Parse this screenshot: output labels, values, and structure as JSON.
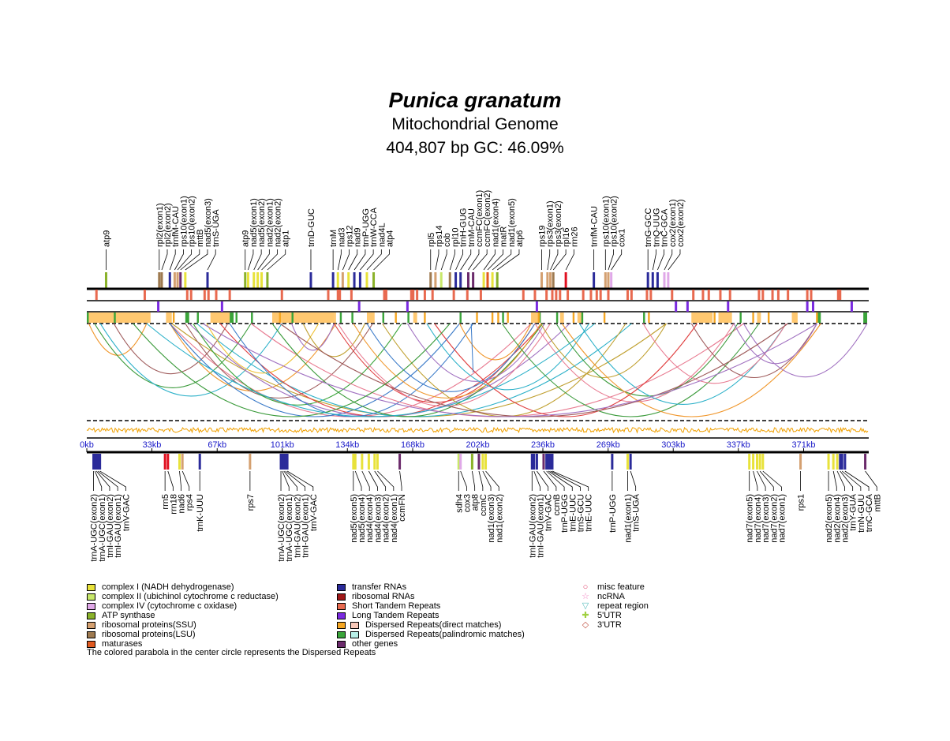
{
  "title": {
    "species": "Punica granatum",
    "subtitle": "Mitochondrial Genome",
    "stats": "404,807 bp  GC: 46.09%"
  },
  "genome_length": 404807,
  "axis_ticks": [
    "0kb",
    "33kb",
    "67kb",
    "101kb",
    "134kb",
    "168kb",
    "202kb",
    "236kb",
    "269kb",
    "303kb",
    "337kb",
    "371kb"
  ],
  "colors": {
    "complex_I": "#e8e23a",
    "complex_II": "#c8e86a",
    "complex_IV": "#e0a8e8",
    "atp": "#8ab22a",
    "rps": "#d4a070",
    "rpl": "#9e7a50",
    "mat": "#e05a20",
    "trna": "#2b2b9a",
    "rrna": "#e01020",
    "ssr": "#e86a50",
    "ltr": "#7a2ae0",
    "direct": "#f5a623",
    "palin": "#3aa43a",
    "other": "#6b2a6b",
    "gc": "#f0a000"
  },
  "top_genes": [
    {
      "name": "atp9",
      "kb": 10,
      "cls": "atp"
    },
    {
      "name": "rpl2(exon1)",
      "kb": 37.5,
      "cls": "rpl"
    },
    {
      "name": "rpl2(exon2)",
      "kb": 38.8,
      "cls": "rpl"
    },
    {
      "name": "trnfM-CAU",
      "kb": 43.0,
      "cls": "trna"
    },
    {
      "name": "rps10(exon1)",
      "kb": 45.5,
      "cls": "rps"
    },
    {
      "name": "rps10(exon2)",
      "kb": 47.0,
      "cls": "rps"
    },
    {
      "name": "mttB",
      "kb": 48.5,
      "cls": "other"
    },
    {
      "name": "nad5(exon3)",
      "kb": 51.0,
      "cls": "complex_I"
    },
    {
      "name": "trnS-UGA",
      "kb": 62.5,
      "cls": "trna"
    },
    {
      "name": "atp9",
      "kb": 82.0,
      "cls": "atp"
    },
    {
      "name": "nad5(exon1)",
      "kb": 83.5,
      "cls": "complex_I"
    },
    {
      "name": "nad5(exon2)",
      "kb": 86.5,
      "cls": "complex_I"
    },
    {
      "name": "nad2(exon1)",
      "kb": 88.5,
      "cls": "complex_I"
    },
    {
      "name": "nad2(exon2)",
      "kb": 90.5,
      "cls": "complex_I"
    },
    {
      "name": "atp1",
      "kb": 93.5,
      "cls": "atp"
    },
    {
      "name": "trnD-GUC",
      "kb": 116.0,
      "cls": "trna"
    },
    {
      "name": "trnM",
      "kb": 127.5,
      "cls": "trna"
    },
    {
      "name": "nad3",
      "kb": 130.0,
      "cls": "complex_I"
    },
    {
      "name": "rps12",
      "kb": 132.5,
      "cls": "rps"
    },
    {
      "name": "nad9",
      "kb": 135.5,
      "cls": "complex_I"
    },
    {
      "name": "trnP-UGG",
      "kb": 138.5,
      "cls": "trna"
    },
    {
      "name": "trnW-CCA",
      "kb": 141.5,
      "cls": "trna"
    },
    {
      "name": "nad4L",
      "kb": 145.0,
      "cls": "complex_I"
    },
    {
      "name": "atp4",
      "kb": 148.5,
      "cls": "atp"
    },
    {
      "name": "rpl5",
      "kb": 178.0,
      "cls": "rpl"
    },
    {
      "name": "rps14",
      "kb": 180.5,
      "cls": "rps"
    },
    {
      "name": "cob",
      "kb": 183.5,
      "cls": "complex_II"
    },
    {
      "name": "rpl10",
      "kb": 188.0,
      "cls": "rpl"
    },
    {
      "name": "trnH-GUG",
      "kb": 191.0,
      "cls": "trna"
    },
    {
      "name": "trnM-CAU",
      "kb": 193.5,
      "cls": "trna"
    },
    {
      "name": "ccmFC(exon1)",
      "kb": 197.5,
      "cls": "other"
    },
    {
      "name": "ccmFC(exon2)",
      "kb": 200.0,
      "cls": "other"
    },
    {
      "name": "nad1(exon4)",
      "kb": 205.5,
      "cls": "complex_I"
    },
    {
      "name": "matR",
      "kb": 207.5,
      "cls": "mat"
    },
    {
      "name": "nad1(exon5)",
      "kb": 210.0,
      "cls": "complex_I"
    },
    {
      "name": "atp6",
      "kb": 212.5,
      "cls": "atp"
    },
    {
      "name": "rps19",
      "kb": 235.5,
      "cls": "rps"
    },
    {
      "name": "rps3(exon1)",
      "kb": 238.5,
      "cls": "rps"
    },
    {
      "name": "rps3(exon2)",
      "kb": 240.0,
      "cls": "rps"
    },
    {
      "name": "rpl16",
      "kb": 241.5,
      "cls": "rpl"
    },
    {
      "name": "rrn26",
      "kb": 248.0,
      "cls": "rrna"
    },
    {
      "name": "trnfM-CAU",
      "kb": 262.5,
      "cls": "trna"
    },
    {
      "name": "rps10(exon1)",
      "kb": 268.5,
      "cls": "rps"
    },
    {
      "name": "rps10(exon2)",
      "kb": 270.0,
      "cls": "rps"
    },
    {
      "name": "cox1",
      "kb": 271.5,
      "cls": "complex_IV"
    },
    {
      "name": "trnG-GCC",
      "kb": 290.5,
      "cls": "trna"
    },
    {
      "name": "trnQ-UUG",
      "kb": 293.0,
      "cls": "trna"
    },
    {
      "name": "trnC-GCA",
      "kb": 295.5,
      "cls": "trna"
    },
    {
      "name": "cox2(exon1)",
      "kb": 299.0,
      "cls": "complex_IV"
    },
    {
      "name": "cox2(exon2)",
      "kb": 301.0,
      "cls": "complex_IV"
    }
  ],
  "bottom_genes": [
    {
      "name": "trnA-UGC(exon2)",
      "kb": 3.5,
      "cls": "trna"
    },
    {
      "name": "trnA-UGC(exon1)",
      "kb": 4.2,
      "cls": "trna"
    },
    {
      "name": "trnI-GAU(exon2)",
      "kb": 5.0,
      "cls": "trna"
    },
    {
      "name": "trnI-GAU(exon1)",
      "kb": 5.8,
      "cls": "trna"
    },
    {
      "name": "trnV-GAC",
      "kb": 6.8,
      "cls": "trna"
    },
    {
      "name": "rrn5",
      "kb": 40.5,
      "cls": "rrna"
    },
    {
      "name": "rrn18",
      "kb": 42.0,
      "cls": "rrna"
    },
    {
      "name": "nad6",
      "kb": 48.0,
      "cls": "complex_I"
    },
    {
      "name": "rps4",
      "kb": 49.5,
      "cls": "rps"
    },
    {
      "name": "trnK-UUU",
      "kb": 58.5,
      "cls": "trna"
    },
    {
      "name": "rps7",
      "kb": 84.5,
      "cls": "rps"
    },
    {
      "name": "trnA-UGC(exon2)",
      "kb": 100.5,
      "cls": "trna"
    },
    {
      "name": "trnA-UGC(exon1)",
      "kb": 101.2,
      "cls": "trna"
    },
    {
      "name": "trnI-GAU(exon2)",
      "kb": 102.0,
      "cls": "trna"
    },
    {
      "name": "trnI-GAU(exon1)",
      "kb": 102.8,
      "cls": "trna"
    },
    {
      "name": "trnV-GAC",
      "kb": 103.8,
      "cls": "trna"
    },
    {
      "name": "nad5(exon5)",
      "kb": 138.0,
      "cls": "complex_I"
    },
    {
      "name": "nad5(exon4)",
      "kb": 139.0,
      "cls": "complex_I"
    },
    {
      "name": "nad4(exon4)",
      "kb": 142.5,
      "cls": "complex_I"
    },
    {
      "name": "nad4(exon3)",
      "kb": 146.0,
      "cls": "complex_I"
    },
    {
      "name": "nad4(exon2)",
      "kb": 149.0,
      "cls": "complex_I"
    },
    {
      "name": "nad4(exon1)",
      "kb": 150.5,
      "cls": "complex_I"
    },
    {
      "name": "ccmFN",
      "kb": 162.0,
      "cls": "other"
    },
    {
      "name": "sdh4",
      "kb": 192.5,
      "cls": "complex_II"
    },
    {
      "name": "cox3",
      "kb": 193.5,
      "cls": "complex_IV"
    },
    {
      "name": "atp8",
      "kb": 199.5,
      "cls": "atp"
    },
    {
      "name": "ccmC",
      "kb": 203.0,
      "cls": "other"
    },
    {
      "name": "nad1(exon3)",
      "kb": 205.0,
      "cls": "complex_I"
    },
    {
      "name": "nad1(exon2)",
      "kb": 206.5,
      "cls": "complex_I"
    },
    {
      "name": "trnI-GAU(exon2)",
      "kb": 230.5,
      "cls": "trna"
    },
    {
      "name": "trnI-GAU(exon1)",
      "kb": 231.5,
      "cls": "trna"
    },
    {
      "name": "trnV-GAC",
      "kb": 233.0,
      "cls": "trna"
    },
    {
      "name": "ccmB",
      "kb": 236.5,
      "cls": "other"
    },
    {
      "name": "trnP-UGG",
      "kb": 238.0,
      "cls": "trna"
    },
    {
      "name": "trnE-UUC",
      "kb": 239.0,
      "cls": "trna"
    },
    {
      "name": "trnS-GCU",
      "kb": 240.0,
      "cls": "trna"
    },
    {
      "name": "trnE-UUC",
      "kb": 241.0,
      "cls": "trna"
    },
    {
      "name": "trnP-UGG",
      "kb": 272.0,
      "cls": "trna"
    },
    {
      "name": "nad1(exon1)",
      "kb": 280.0,
      "cls": "complex_I"
    },
    {
      "name": "trnS-UGA",
      "kb": 281.5,
      "cls": "trna"
    },
    {
      "name": "nad7(exon5)",
      "kb": 343.0,
      "cls": "complex_I"
    },
    {
      "name": "nad7(exon4)",
      "kb": 345.0,
      "cls": "complex_I"
    },
    {
      "name": "nad7(exon3)",
      "kb": 347.0,
      "cls": "complex_I"
    },
    {
      "name": "nad7(exon2)",
      "kb": 348.5,
      "cls": "complex_I"
    },
    {
      "name": "nad7(exon1)",
      "kb": 350.0,
      "cls": "complex_I"
    },
    {
      "name": "rps1",
      "kb": 369.5,
      "cls": "rps"
    },
    {
      "name": "nad2(exon5)",
      "kb": 384.0,
      "cls": "complex_I"
    },
    {
      "name": "nad2(exon4)",
      "kb": 386.5,
      "cls": "complex_I"
    },
    {
      "name": "nad2(exon3)",
      "kb": 388.5,
      "cls": "complex_I"
    },
    {
      "name": "trnY-GUA",
      "kb": 390.0,
      "cls": "trna"
    },
    {
      "name": "trnN-GUU",
      "kb": 391.0,
      "cls": "trna"
    },
    {
      "name": "trnC-GCA",
      "kb": 392.5,
      "cls": "trna"
    },
    {
      "name": "mttB",
      "kb": 403.0,
      "cls": "other"
    }
  ],
  "ssr_kb": [
    5,
    30,
    52,
    54,
    61,
    63,
    67,
    74,
    101,
    125,
    130,
    131,
    137,
    154,
    155,
    168,
    169,
    171,
    175,
    179,
    190,
    197,
    204,
    226,
    232,
    238,
    241,
    243,
    245,
    249,
    257,
    261,
    264,
    266,
    270,
    280,
    282,
    290,
    292,
    303,
    314,
    319,
    322,
    328,
    333,
    348,
    350,
    355,
    358,
    363,
    373,
    375,
    389,
    390
  ],
  "ltr_kb": [
    37,
    70,
    141,
    166,
    233,
    305,
    311,
    332,
    373,
    376,
    396
  ],
  "direct_blocks_kb": [
    [
      0,
      33
    ],
    [
      41,
      44
    ],
    [
      64,
      75
    ],
    [
      96,
      128
    ],
    [
      128,
      129
    ],
    [
      145,
      149
    ],
    [
      169,
      171
    ],
    [
      230,
      235
    ],
    [
      245,
      247
    ],
    [
      254,
      256
    ],
    [
      313,
      324
    ],
    [
      327,
      334
    ],
    [
      347,
      349
    ],
    [
      365,
      368
    ]
  ],
  "palin_blocks_kb": [
    [
      0,
      1
    ],
    [
      14,
      15
    ],
    [
      51,
      53
    ],
    [
      57,
      58
    ],
    [
      74,
      76
    ],
    [
      77,
      78
    ],
    [
      85,
      86
    ],
    [
      106,
      107
    ],
    [
      131,
      132
    ],
    [
      137,
      138
    ],
    [
      153,
      154
    ],
    [
      166,
      167
    ],
    [
      193,
      194
    ],
    [
      215,
      216
    ],
    [
      234,
      235
    ],
    [
      243,
      244
    ],
    [
      256,
      257
    ],
    [
      288,
      289
    ],
    [
      338,
      339
    ],
    [
      378,
      380
    ],
    [
      402,
      404
    ]
  ],
  "dispersed_repeats": [
    {
      "a": 1,
      "b": 31,
      "color": "#f0962a"
    },
    {
      "a": 4,
      "b": 85,
      "color": "#3a9a3a"
    },
    {
      "a": 7,
      "b": 101,
      "color": "#2ab0c8"
    },
    {
      "a": 14,
      "b": 73,
      "color": "#9e5a5a"
    },
    {
      "a": 43,
      "b": 129,
      "color": "#f0962a"
    },
    {
      "a": 43,
      "b": 230,
      "color": "#e87a90"
    },
    {
      "a": 43,
      "b": 193,
      "color": "#3a7ac8"
    },
    {
      "a": 44,
      "b": 300,
      "color": "#c0a030"
    },
    {
      "a": 51,
      "b": 148,
      "color": "#9e5a5a"
    },
    {
      "a": 53,
      "b": 250,
      "color": "#a070c0"
    },
    {
      "a": 55,
      "b": 163,
      "color": "#3aa43a"
    },
    {
      "a": 57,
      "b": 282,
      "color": "#2ab0c8"
    },
    {
      "a": 62,
      "b": 120,
      "color": "#f0c030"
    },
    {
      "a": 69,
      "b": 236,
      "color": "#e04040"
    },
    {
      "a": 74,
      "b": 200,
      "color": "#3a7ac8"
    },
    {
      "a": 85,
      "b": 340,
      "color": "#e87a90"
    },
    {
      "a": 96,
      "b": 236,
      "color": "#3a9a3a"
    },
    {
      "a": 106,
      "b": 128,
      "color": "#a070c0"
    },
    {
      "a": 112,
      "b": 144,
      "color": "#c0a030"
    },
    {
      "a": 128,
      "b": 232,
      "color": "#e04040"
    },
    {
      "a": 130,
      "b": 240,
      "color": "#e87a90"
    },
    {
      "a": 138,
      "b": 235,
      "color": "#f0962a"
    },
    {
      "a": 145,
      "b": 232,
      "color": "#3a7ac8"
    },
    {
      "a": 153,
      "b": 279,
      "color": "#c0a030"
    },
    {
      "a": 166,
      "b": 237,
      "color": "#a070c0"
    },
    {
      "a": 176,
      "b": 260,
      "color": "#2ab0c8"
    },
    {
      "a": 193,
      "b": 230,
      "color": "#f0962a"
    },
    {
      "a": 215,
      "b": 348,
      "color": "#3a9a3a"
    },
    {
      "a": 232,
      "b": 335,
      "color": "#e87a90"
    },
    {
      "a": 235,
      "b": 300,
      "color": "#c0a030"
    },
    {
      "a": 243,
      "b": 337,
      "color": "#3a9a3a"
    },
    {
      "a": 246,
      "b": 380,
      "color": "#f0962a"
    },
    {
      "a": 255,
      "b": 362,
      "color": "#2ab0c8"
    },
    {
      "a": 288,
      "b": 362,
      "color": "#e87a90"
    },
    {
      "a": 313,
      "b": 378,
      "color": "#9e5a5a"
    },
    {
      "a": 335,
      "b": 378,
      "color": "#a070c0"
    },
    {
      "a": 340,
      "b": 404,
      "color": "#a070c0"
    },
    {
      "a": 180,
      "b": 316,
      "color": "#e04040"
    },
    {
      "a": 100,
      "b": 363,
      "color": "#9e5a5a"
    },
    {
      "a": 60,
      "b": 378,
      "color": "#a070c0"
    },
    {
      "a": 24,
      "b": 188,
      "color": "#3a9a3a"
    },
    {
      "a": 31,
      "b": 263,
      "color": "#2ab0c8"
    }
  ],
  "legend": {
    "col1": [
      {
        "label": "complex I (NADH dehydrogenase)",
        "color": "#e8e23a"
      },
      {
        "label": "complex II (ubichinol cytochrome c reductase)",
        "color": "#c8e86a"
      },
      {
        "label": "complex IV (cytochrome c oxidase)",
        "color": "#e0a8e8"
      },
      {
        "label": "ATP synthase",
        "color": "#8ab22a"
      },
      {
        "label": "ribosomal proteins(SSU)",
        "color": "#d4a070"
      },
      {
        "label": "ribosomal proteins(LSU)",
        "color": "#9e7a50"
      },
      {
        "label": "maturases",
        "color": "#e05a20"
      }
    ],
    "col2": [
      {
        "label": "transfer RNAs",
        "color": "#2b2b9a"
      },
      {
        "label": "ribosomal RNAs",
        "color": "#a01818"
      },
      {
        "label": "Short Tandem Repeats",
        "color": "#e86a50"
      },
      {
        "label": "Long Tandem Repeats",
        "color": "#7a2ae0"
      },
      {
        "label": "Dispersed Repeats(direct matches)",
        "color": "#f5a623",
        "color2": "#f8c8b8"
      },
      {
        "label": "Dispersed Repeats(palindromic matches)",
        "color": "#3aa43a",
        "color2": "#b8f0e8"
      },
      {
        "label": "other genes",
        "color": "#6b2a6b"
      }
    ],
    "col3": [
      {
        "label": "misc feature",
        "symbol": "○",
        "color": "#e0406a"
      },
      {
        "label": "ncRNA",
        "symbol": "☆",
        "color": "#f080c0"
      },
      {
        "label": "repeat region",
        "symbol": "▽",
        "color": "#60c0c0"
      },
      {
        "label": "5'UTR",
        "symbol": "✚",
        "color": "#a0d040"
      },
      {
        "label": "3'UTR",
        "symbol": "◇",
        "color": "#c05040"
      }
    ]
  },
  "footnote": "The colored parabola in the center circle represents the Dispersed Repeats"
}
